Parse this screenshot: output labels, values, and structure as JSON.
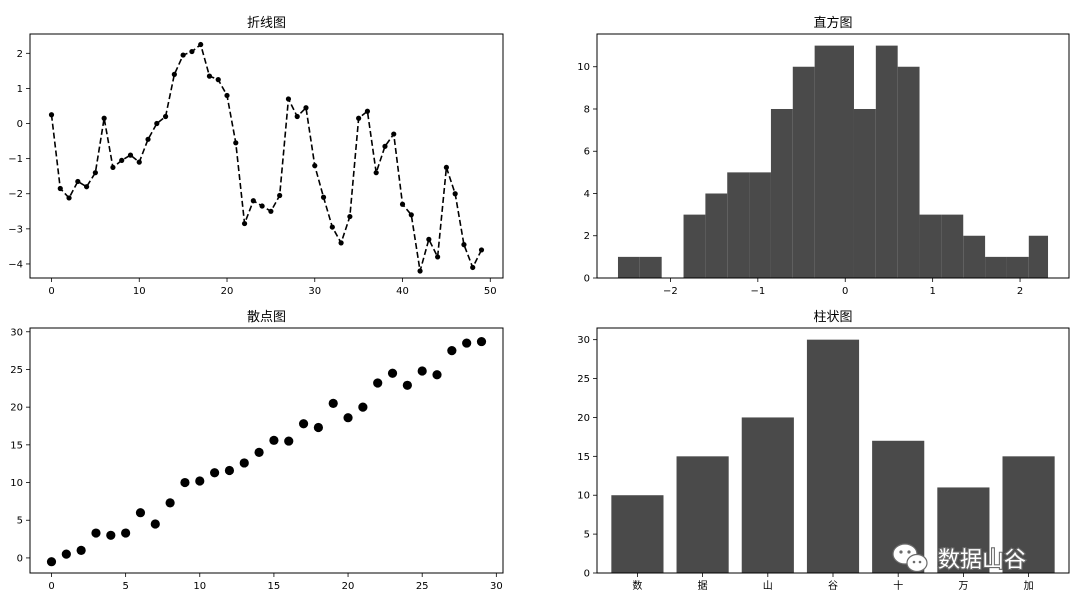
{
  "chart_data": [
    {
      "type": "line",
      "title": "折线图",
      "xlim": [
        -2.45,
        51.45
      ],
      "ylim": [
        -4.4,
        2.55
      ],
      "xticks": [
        0,
        10,
        20,
        30,
        40,
        50
      ],
      "yticks": [
        -4,
        -3,
        -2,
        -1,
        0,
        1,
        2
      ],
      "line_style": "dashed",
      "marker": "dot",
      "color": "#000000",
      "x": [
        0,
        1,
        2,
        3,
        4,
        5,
        6,
        7,
        8,
        9,
        10,
        11,
        12,
        13,
        14,
        15,
        16,
        17,
        18,
        19,
        20,
        21,
        22,
        23,
        24,
        25,
        26,
        27,
        28,
        29,
        30,
        31,
        32,
        33,
        34,
        35,
        36,
        37,
        38,
        39,
        40,
        41,
        42,
        43,
        44,
        45,
        46,
        47,
        48,
        49
      ],
      "y": [
        0.25,
        -1.85,
        -2.12,
        -1.65,
        -1.8,
        -1.4,
        0.15,
        -1.25,
        -1.05,
        -0.9,
        -1.1,
        -0.45,
        0.0,
        0.2,
        1.4,
        1.95,
        2.05,
        2.25,
        1.35,
        1.25,
        0.8,
        -0.55,
        -2.85,
        -2.2,
        -2.35,
        -2.5,
        -2.05,
        0.7,
        0.2,
        0.45,
        -1.2,
        -2.1,
        -2.95,
        -3.4,
        -2.65,
        0.15,
        0.35,
        -1.4,
        -0.65,
        -0.3,
        -2.3,
        -2.6,
        -4.2,
        -3.3,
        -3.8,
        -1.25,
        -2.0,
        -3.45,
        -4.1,
        -3.6
      ]
    },
    {
      "type": "bar",
      "subtype": "histogram",
      "title": "直方图",
      "xlim": [
        -2.84,
        2.56
      ],
      "ylim": [
        0,
        11.55
      ],
      "xticks": [
        -2,
        -1,
        0,
        1,
        2
      ],
      "yticks": [
        0,
        2,
        4,
        6,
        8,
        10
      ],
      "color": "#4a4a4a",
      "bin_edges": [
        -2.6,
        -2.35,
        -2.1,
        -1.85,
        -1.6,
        -1.35,
        -1.1,
        -0.85,
        -0.6,
        -0.35,
        -0.1,
        0.1,
        0.35,
        0.6,
        0.85,
        1.1,
        1.35,
        1.6,
        1.85,
        2.1,
        2.32
      ],
      "values": [
        1,
        1,
        0,
        3,
        4,
        5,
        5,
        8,
        10,
        11,
        11,
        8,
        11,
        10,
        3,
        3,
        2,
        1,
        1,
        2
      ]
    },
    {
      "type": "scatter",
      "title": "散点图",
      "xlim": [
        -1.45,
        30.45
      ],
      "ylim": [
        -2.0,
        30.5
      ],
      "xticks": [
        0,
        5,
        10,
        15,
        20,
        25,
        30
      ],
      "yticks": [
        0,
        5,
        10,
        15,
        20,
        25,
        30
      ],
      "color": "#000000",
      "x": [
        0,
        1,
        2,
        3,
        4,
        5,
        6,
        7,
        8,
        9,
        10,
        11,
        12,
        13,
        14,
        15,
        16,
        17,
        18,
        19,
        20,
        21,
        22,
        23,
        24,
        25,
        26,
        27,
        28,
        29
      ],
      "y": [
        -0.5,
        0.5,
        1.0,
        3.3,
        3.0,
        3.3,
        6.0,
        4.5,
        7.3,
        10.0,
        10.2,
        11.3,
        11.6,
        12.6,
        14.0,
        15.6,
        15.5,
        17.8,
        17.3,
        20.5,
        18.6,
        20.0,
        23.2,
        24.5,
        22.9,
        24.8,
        24.3,
        27.5,
        28.5,
        28.7
      ]
    },
    {
      "type": "bar",
      "title": "柱状图",
      "categories": [
        "数",
        "据",
        "山",
        "谷",
        "十",
        "万",
        "加"
      ],
      "values": [
        10,
        15,
        20,
        30,
        17,
        11,
        15
      ],
      "ylim": [
        0,
        31.5
      ],
      "yticks": [
        0,
        5,
        10,
        15,
        20,
        25,
        30
      ],
      "color": "#4a4a4a"
    }
  ],
  "watermark": {
    "text": "数据山谷",
    "icon": "wechat-icon"
  }
}
